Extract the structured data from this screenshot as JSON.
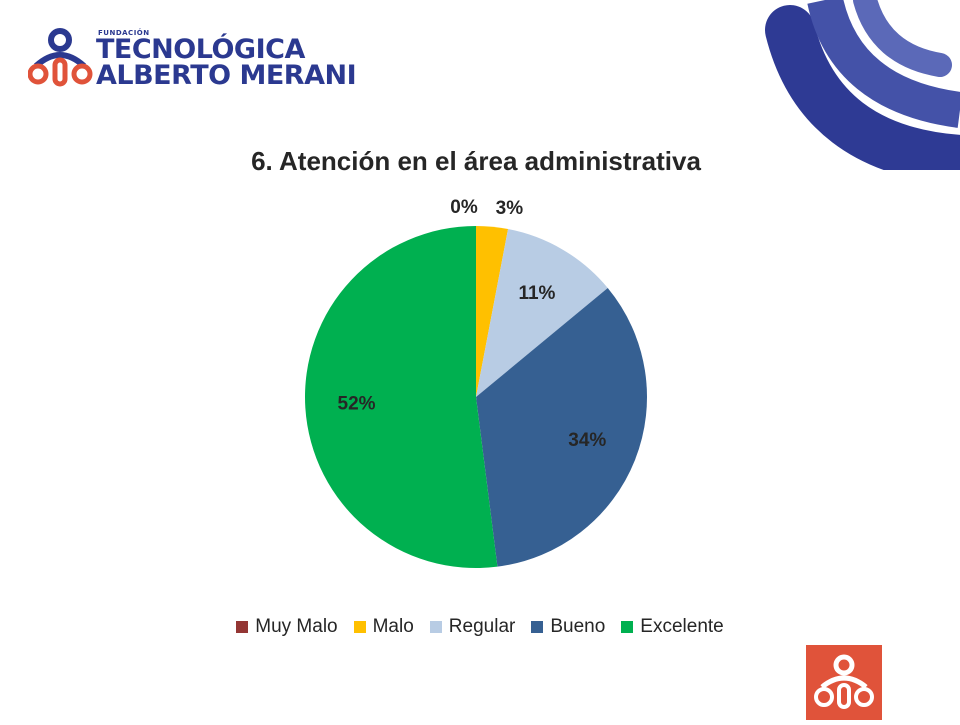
{
  "logo": {
    "small": "FUNDACIÓN",
    "line1": "TECNOLÓGICA",
    "line2": "ALBERTO MERANI"
  },
  "chart_data": {
    "type": "pie",
    "title": "6. Atención en el área administrativa",
    "categories": [
      "Muy Malo",
      "Malo",
      "Regular",
      "Bueno",
      "Excelente"
    ],
    "values": [
      0,
      3,
      11,
      34,
      52
    ],
    "labels": [
      "0%",
      "3%",
      "11%",
      "34%",
      "52%"
    ],
    "colors": [
      "#943634",
      "#ffc000",
      "#b8cce4",
      "#366092",
      "#00b050"
    ],
    "legend": "bottom"
  }
}
